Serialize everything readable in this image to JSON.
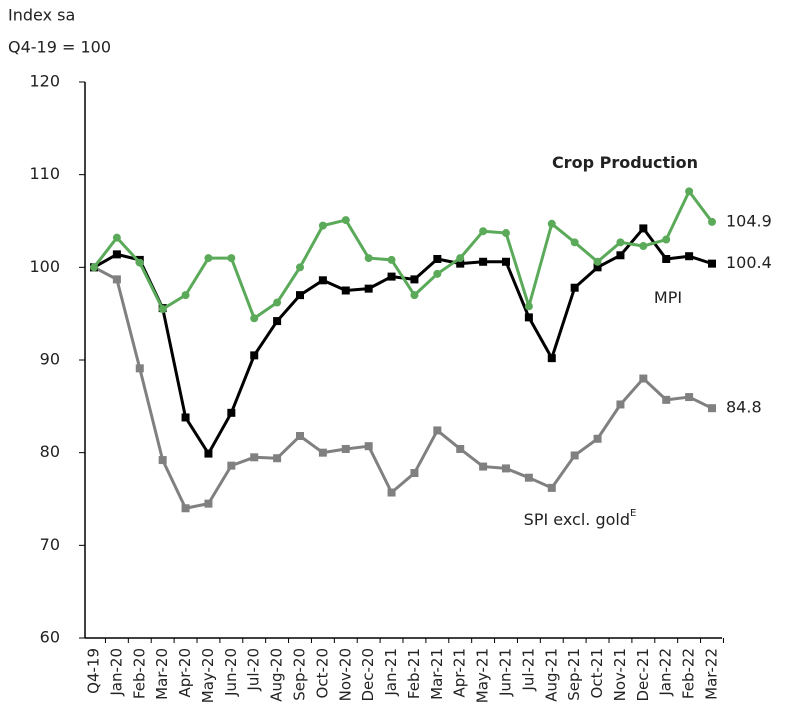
{
  "chart_data": {
    "type": "line",
    "ylabel_lines": [
      "Index sa",
      "Q4-19 = 100"
    ],
    "categories": [
      "Q4-19",
      "Jan-20",
      "Feb-20",
      "Mar-20",
      "Apr-20",
      "May-20",
      "Jun-20",
      "Jul-20",
      "Aug-20",
      "Sep-20",
      "Oct-20",
      "Nov-20",
      "Dec-20",
      "Jan-21",
      "Feb-21",
      "Mar-21",
      "Apr-21",
      "May-21",
      "Jun-21",
      "Jul-21",
      "Aug-21",
      "Sep-21",
      "Oct-21",
      "Nov-21",
      "Dec-21",
      "Jan-22",
      "Feb-22",
      "Mar-22"
    ],
    "series": [
      {
        "name": "Crop Production",
        "color": "#5aaa5a",
        "marker": "circle",
        "values": [
          100,
          103.2,
          100.5,
          95.5,
          97,
          101,
          101,
          94.5,
          96.2,
          100,
          104.5,
          105.1,
          101,
          100.8,
          97,
          99.3,
          101,
          103.9,
          103.7,
          95.8,
          104.7,
          102.7,
          100.6,
          102.7,
          102.3,
          103,
          108.2,
          104.9
        ]
      },
      {
        "name": "MPI",
        "color": "#000000",
        "marker": "square",
        "values": [
          100,
          101.4,
          100.8,
          95.6,
          83.8,
          79.9,
          84.3,
          90.5,
          94.2,
          97,
          98.6,
          97.5,
          97.7,
          99,
          98.7,
          100.9,
          100.4,
          100.6,
          100.6,
          94.6,
          90.2,
          97.8,
          100,
          101.3,
          104.2,
          100.9,
          101.2,
          100.4
        ]
      },
      {
        "name": "SPI excl. gold",
        "note_mark": "E",
        "color": "#808080",
        "marker": "square",
        "values": [
          100,
          98.7,
          89.1,
          79.2,
          74,
          74.5,
          78.6,
          79.5,
          79.4,
          81.8,
          80,
          80.4,
          80.7,
          75.7,
          77.8,
          82.4,
          80.4,
          78.5,
          78.3,
          77.3,
          76.2,
          79.7,
          81.5,
          85.2,
          88,
          85.7,
          86,
          84.8
        ]
      }
    ],
    "ylim": [
      60,
      120
    ],
    "yticks": [
      60,
      70,
      80,
      90,
      100,
      110,
      120
    ],
    "grid": false
  }
}
